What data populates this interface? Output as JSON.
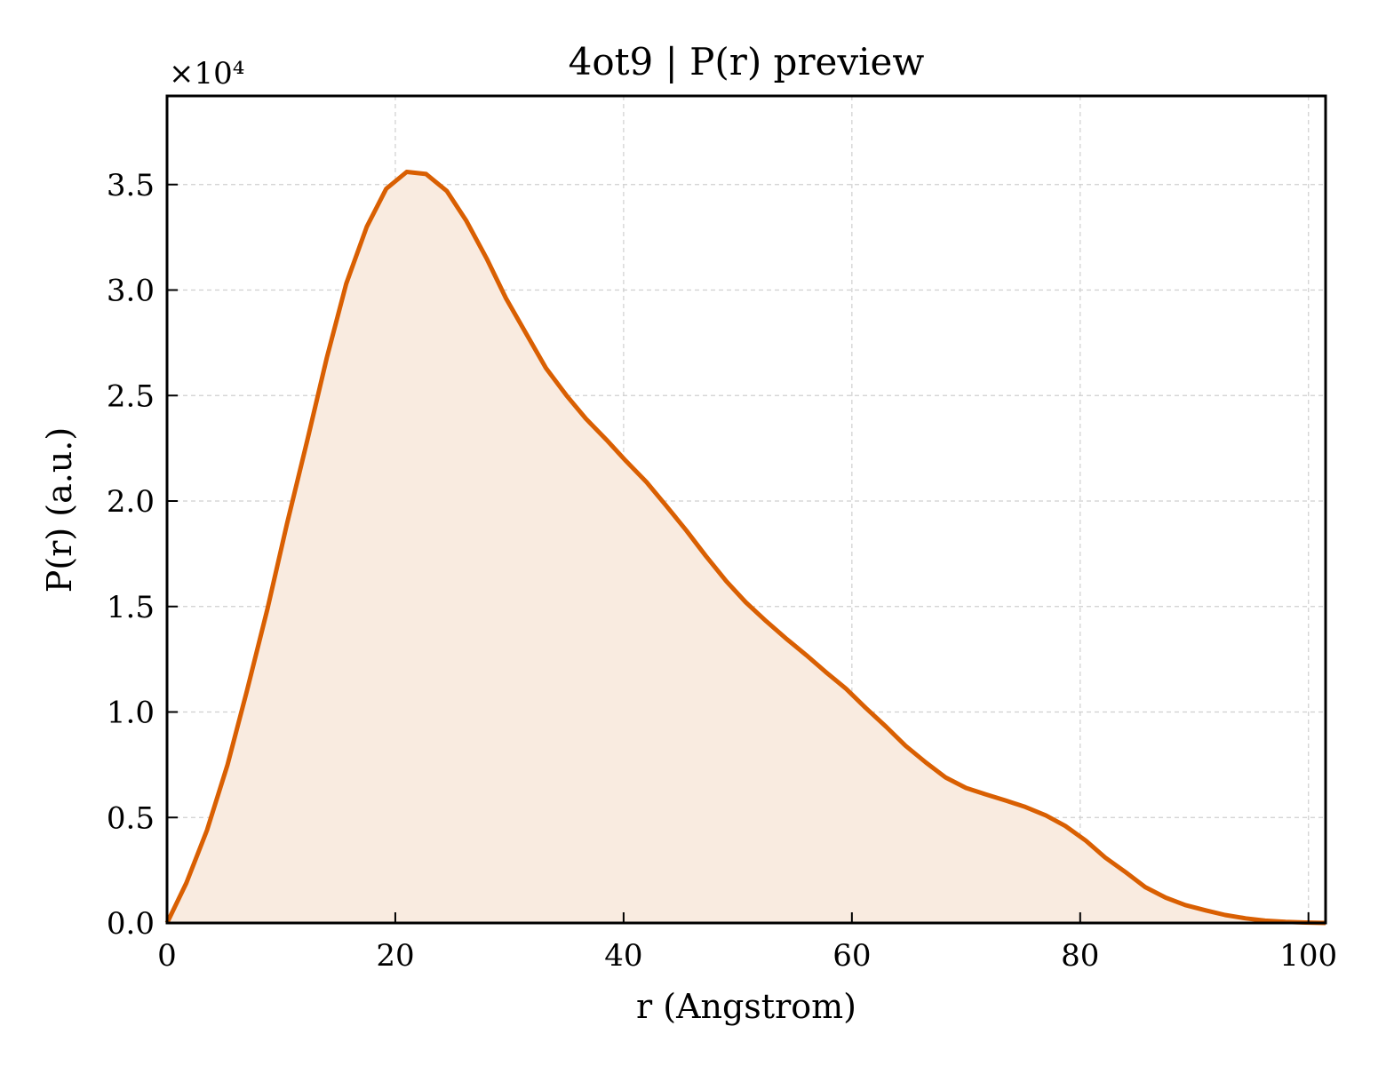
{
  "chart_data": {
    "type": "area",
    "title": "4ot9 | P(r) preview",
    "xlabel": "r (Angstrom)",
    "ylabel": "P(r) (a.u.)",
    "y_scale_note": "×10⁴",
    "xlim": [
      0,
      101.5
    ],
    "ylim": [
      0,
      39200
    ],
    "x_ticks": [
      0,
      20,
      40,
      60,
      80,
      100
    ],
    "x_tick_labels": [
      "0",
      "20",
      "40",
      "60",
      "80",
      "100"
    ],
    "y_ticks": [
      0,
      5000,
      10000,
      15000,
      20000,
      25000,
      30000,
      35000
    ],
    "y_tick_labels": [
      "0.0",
      "0.5",
      "1.0",
      "1.5",
      "2.0",
      "2.5",
      "3.0",
      "3.5"
    ],
    "grid": true,
    "line_color": "#d95f02",
    "fill_color": "#f9ebe0",
    "series": [
      {
        "x": [
          0,
          1.7,
          3.5,
          5.3,
          7.0,
          8.8,
          10.5,
          12.3,
          14.0,
          15.7,
          17.5,
          19.2,
          21.0,
          22.7,
          24.5,
          26.2,
          28.0,
          29.7,
          31.5,
          33.2,
          35.0,
          36.7,
          38.5,
          40.2,
          42.0,
          43.7,
          45.5,
          47.2,
          49.0,
          50.7,
          52.5,
          54.2,
          56.0,
          57.7,
          59.5,
          61.2,
          63.0,
          64.7,
          66.5,
          68.2,
          70.0,
          71.7,
          73.5,
          75.2,
          77.0,
          78.7,
          80.5,
          82.2,
          84.0,
          85.7,
          87.5,
          89.2,
          91.0,
          92.7,
          94.5,
          96.2,
          98.0,
          99.7,
          101.5
        ],
        "y": [
          0,
          1900,
          4400,
          7500,
          11000,
          14900,
          18900,
          22900,
          26800,
          30300,
          33000,
          34800,
          35600,
          35500,
          34700,
          33300,
          31500,
          29600,
          27900,
          26300,
          25000,
          23900,
          22900,
          21900,
          20900,
          19800,
          18600,
          17400,
          16200,
          15200,
          14300,
          13500,
          12700,
          11900,
          11100,
          10200,
          9300,
          8400,
          7600,
          6900,
          6400,
          6100,
          5800,
          5500,
          5100,
          4600,
          3900,
          3100,
          2400,
          1700,
          1200,
          850,
          600,
          380,
          220,
          110,
          50,
          20,
          0
        ]
      }
    ]
  }
}
